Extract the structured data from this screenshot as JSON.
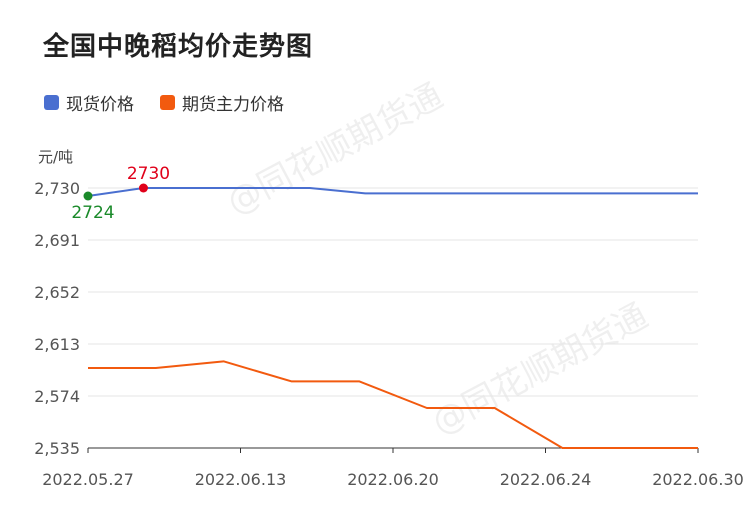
{
  "title": "全国中晚稻均价走势图",
  "unit": "元/吨",
  "watermark": "@同花顺期货通",
  "colors": {
    "spot": "#4a6fd0",
    "futures": "#f25a0f",
    "max_label": "#e0001a",
    "min_label": "#1a8a2a"
  },
  "chart_data": {
    "type": "line",
    "ylim": [
      2535,
      2730
    ],
    "y_ticks": [
      "2,730",
      "2,691",
      "2,652",
      "2,613",
      "2,574",
      "2,535"
    ],
    "x_tick_labels": [
      "2022.05.27",
      "2022.06.13",
      "2022.06.20",
      "2022.06.24",
      "2022.06.30"
    ],
    "series": [
      {
        "name": "现货价格",
        "color": "#4a6fd0",
        "values": [
          2724,
          2730,
          2730,
          2730,
          2730,
          2726,
          2726,
          2726,
          2726,
          2726,
          2726,
          2726
        ]
      },
      {
        "name": "期货主力价格",
        "color": "#f25a0f",
        "values": [
          2595,
          2595,
          2600,
          2585,
          2585,
          2565,
          2565,
          2535,
          2535,
          2535
        ]
      }
    ],
    "annotations": [
      {
        "label": "2730",
        "series": 0,
        "index": 1,
        "kind": "max"
      },
      {
        "label": "2724",
        "series": 0,
        "index": 0,
        "kind": "min"
      }
    ]
  }
}
